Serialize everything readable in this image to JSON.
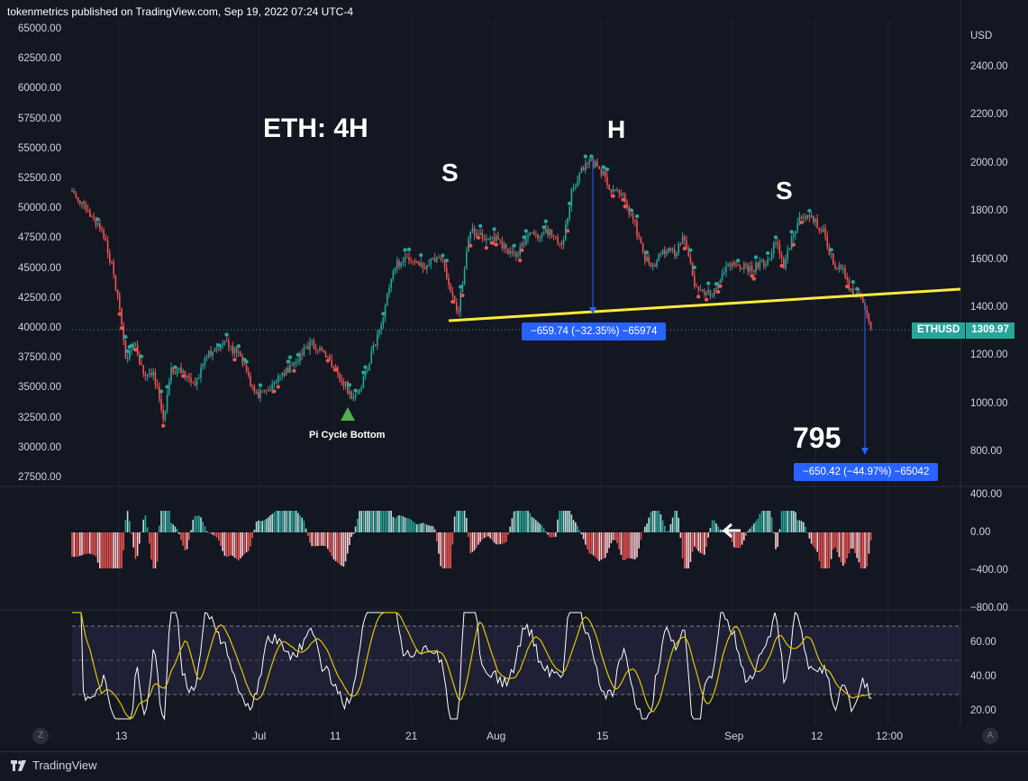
{
  "header": {
    "publisher_line": "tokenmetrics published on TradingView.com, Sep 19, 2022 07:24 UTC-4"
  },
  "chart": {
    "title": "ETH: 4H",
    "left_axis": [
      "65000.00",
      "62500.00",
      "60000.00",
      "57500.00",
      "55000.00",
      "52500.00",
      "50000.00",
      "47500.00",
      "45000.00",
      "42500.00",
      "40000.00",
      "37500.00",
      "35000.00",
      "32500.00",
      "30000.00",
      "27500.00"
    ],
    "right_axis_unit": "USD",
    "right_axis": [
      "2400.00",
      "2200.00",
      "2000.00",
      "1800.00",
      "1600.00",
      "1400.00",
      "1200.00",
      "1000.00",
      "800.00"
    ],
    "labels": {
      "left_shoulder": "S",
      "head": "H",
      "right_shoulder": "S",
      "target": "795",
      "pi_cycle": "Pi Cycle Bottom"
    },
    "measure_1": "−659.74 (−32.35%) −65974",
    "measure_2": "−650.42 (−44.97%) −65042",
    "symbol": "ETHUSD",
    "last_price": "1309.97",
    "colors": {
      "up": "#26a69a",
      "down": "#ef5350",
      "neckline": "#ffeb3b",
      "measure": "#2962ff",
      "background": "#131722"
    }
  },
  "oscillator": {
    "axis": [
      "400.00",
      "0.00",
      "−400.00",
      "−800.00"
    ]
  },
  "rsi": {
    "axis": [
      "60.00",
      "40.00",
      "20.00"
    ]
  },
  "time_axis": [
    "13",
    "Jul",
    "11",
    "21",
    "Aug",
    "15",
    "Sep",
    "12",
    "12:00"
  ],
  "footer": {
    "brand": "TradingView",
    "left_button": "Z",
    "right_button": "A"
  }
}
